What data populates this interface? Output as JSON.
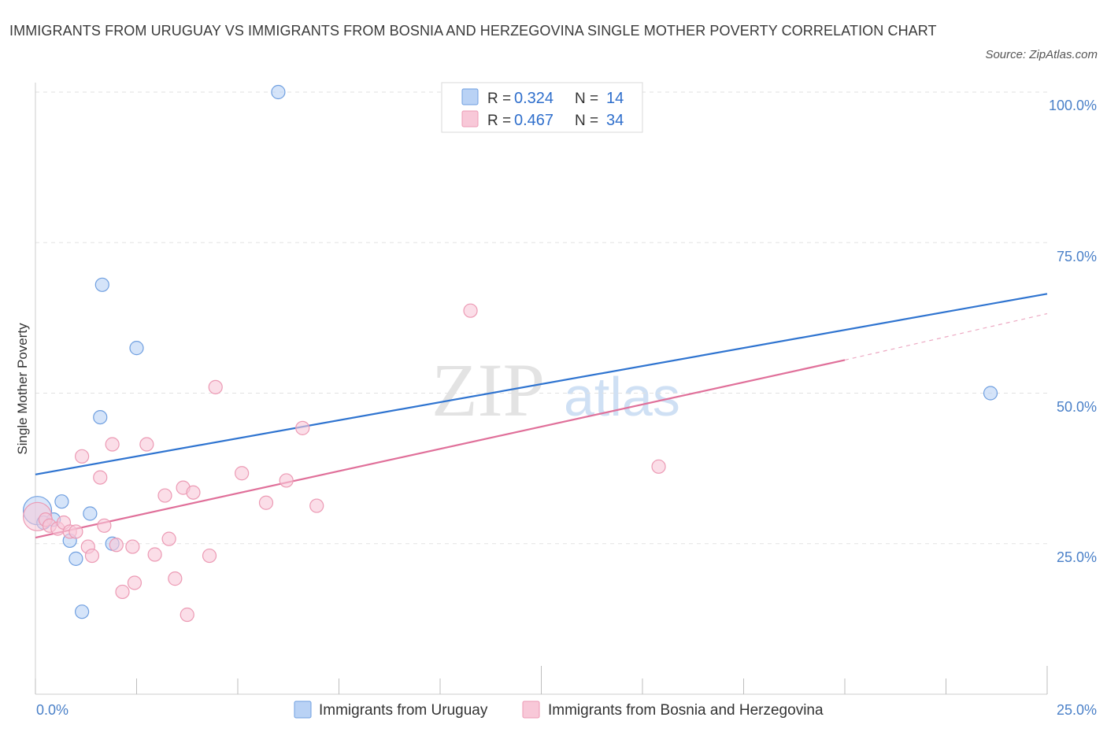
{
  "title": "IMMIGRANTS FROM URUGUAY VS IMMIGRANTS FROM BOSNIA AND HERZEGOVINA SINGLE MOTHER POVERTY CORRELATION CHART",
  "source": "Source: ZipAtlas.com",
  "watermark": {
    "zip": "ZIP",
    "atlas": "atlas"
  },
  "chart_data": {
    "type": "scatter",
    "title": "IMMIGRANTS FROM URUGUAY VS IMMIGRANTS FROM BOSNIA AND HERZEGOVINA SINGLE MOTHER POVERTY CORRELATION CHART",
    "xlabel": "",
    "ylabel": "Single Mother Poverty",
    "xlim": [
      0,
      25
    ],
    "ylim": [
      0,
      100
    ],
    "x_tick_labels": {
      "min": "0.0%",
      "max": "25.0%"
    },
    "y_ticks": [
      {
        "value": 100,
        "label": "100.0%"
      },
      {
        "value": 75,
        "label": "75.0%"
      },
      {
        "value": 50,
        "label": "50.0%"
      },
      {
        "value": 25,
        "label": "25.0%"
      }
    ],
    "grid": true,
    "legend_position": "top-center",
    "series": [
      {
        "name": "Immigrants from Uruguay",
        "color": "#6f9fe0",
        "fill": "#b9d2f5",
        "line_color": "#2f74d0",
        "R": "0.324",
        "N": "14",
        "points": [
          {
            "x": 0.05,
            "y": 30.5,
            "big": true
          },
          {
            "x": 0.2,
            "y": 28.5
          },
          {
            "x": 0.45,
            "y": 29
          },
          {
            "x": 0.65,
            "y": 32
          },
          {
            "x": 0.85,
            "y": 25.5
          },
          {
            "x": 1.0,
            "y": 22.5
          },
          {
            "x": 1.15,
            "y": 13.7
          },
          {
            "x": 1.35,
            "y": 30
          },
          {
            "x": 1.6,
            "y": 46
          },
          {
            "x": 1.65,
            "y": 68
          },
          {
            "x": 1.9,
            "y": 25
          },
          {
            "x": 2.5,
            "y": 57.5
          },
          {
            "x": 6.0,
            "y": 100
          },
          {
            "x": 23.6,
            "y": 50
          }
        ],
        "trend": {
          "x0": 0,
          "y0": 36.5,
          "x1": 25,
          "y1": 66.5
        }
      },
      {
        "name": "Immigrants from Bosnia and Herzegovina",
        "color": "#ec9ab4",
        "fill": "#f8c8d8",
        "line_color": "#e0709a",
        "R": "0.467",
        "N": "34",
        "points": [
          {
            "x": 0.05,
            "y": 29.5,
            "big": true
          },
          {
            "x": 0.25,
            "y": 29
          },
          {
            "x": 0.35,
            "y": 28
          },
          {
            "x": 0.55,
            "y": 27.5
          },
          {
            "x": 0.7,
            "y": 28.5
          },
          {
            "x": 0.85,
            "y": 27
          },
          {
            "x": 1.0,
            "y": 27
          },
          {
            "x": 1.15,
            "y": 39.5
          },
          {
            "x": 1.3,
            "y": 24.5
          },
          {
            "x": 1.4,
            "y": 23
          },
          {
            "x": 1.6,
            "y": 36
          },
          {
            "x": 1.7,
            "y": 28
          },
          {
            "x": 1.9,
            "y": 41.5
          },
          {
            "x": 2.0,
            "y": 24.8
          },
          {
            "x": 2.15,
            "y": 17
          },
          {
            "x": 2.4,
            "y": 24.5
          },
          {
            "x": 2.45,
            "y": 18.5
          },
          {
            "x": 2.75,
            "y": 41.5
          },
          {
            "x": 2.95,
            "y": 23.2
          },
          {
            "x": 3.2,
            "y": 33
          },
          {
            "x": 3.3,
            "y": 25.8
          },
          {
            "x": 3.45,
            "y": 19.2
          },
          {
            "x": 3.65,
            "y": 34.3
          },
          {
            "x": 3.75,
            "y": 13.2
          },
          {
            "x": 3.9,
            "y": 33.5
          },
          {
            "x": 4.3,
            "y": 23
          },
          {
            "x": 4.45,
            "y": 51
          },
          {
            "x": 5.1,
            "y": 36.7
          },
          {
            "x": 5.7,
            "y": 31.8
          },
          {
            "x": 6.2,
            "y": 35.5
          },
          {
            "x": 6.6,
            "y": 44.2
          },
          {
            "x": 6.95,
            "y": 31.3
          },
          {
            "x": 10.75,
            "y": 63.7
          },
          {
            "x": 15.4,
            "y": 37.8
          }
        ],
        "trend": {
          "x0": 0,
          "y0": 26,
          "x1": 20,
          "y1": 55.5
        },
        "trend_dashed": {
          "x0": 20,
          "y0": 55.5,
          "x1": 25,
          "y1": 63.2
        }
      }
    ]
  },
  "legend": {
    "r_label": "R =",
    "n_label": "N ="
  }
}
